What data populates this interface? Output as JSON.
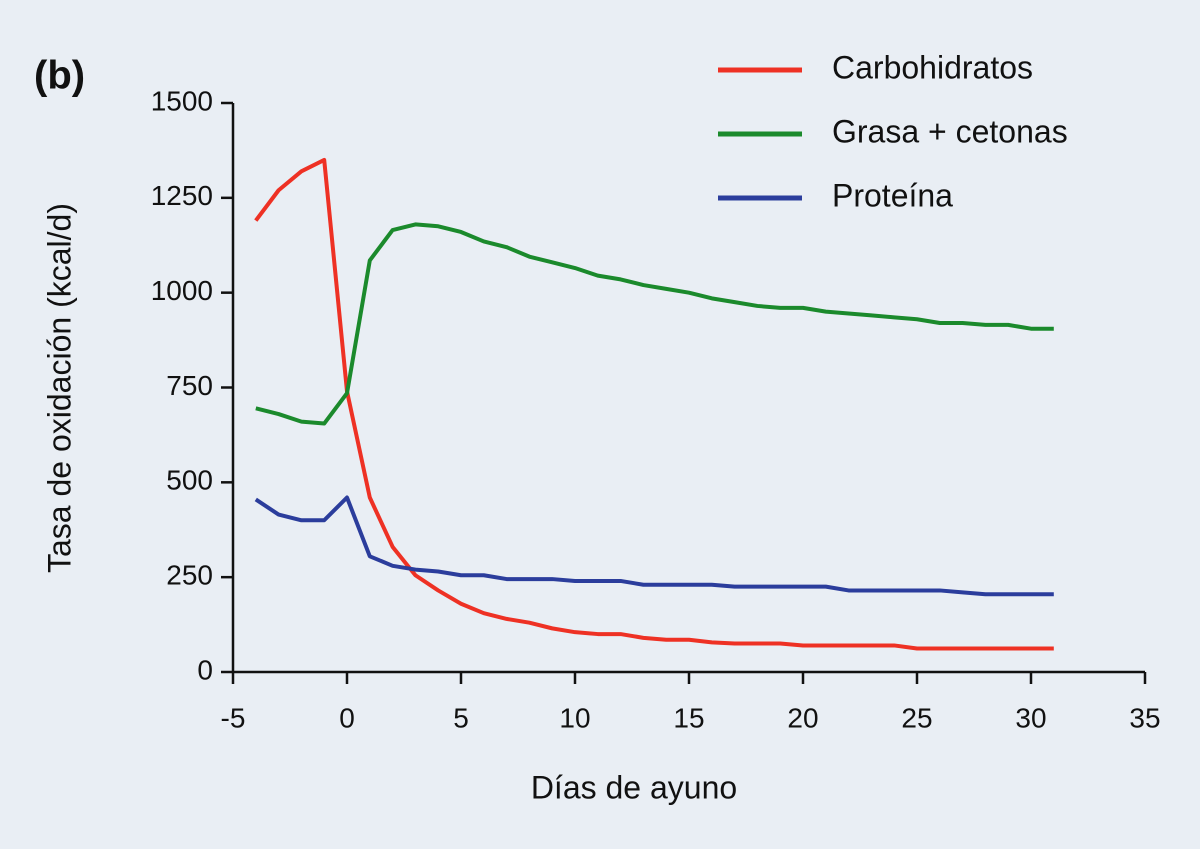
{
  "chart_data": {
    "type": "line",
    "label": "(b)",
    "x_label": "Días de ayuno",
    "y_label": "Tasa de oxidación  (kcal/d)",
    "x": [
      -4,
      -3,
      -2,
      -1,
      0,
      1,
      2,
      3,
      4,
      5,
      6,
      7,
      8,
      9,
      10,
      11,
      12,
      13,
      14,
      15,
      16,
      17,
      18,
      19,
      20,
      21,
      22,
      23,
      24,
      25,
      26,
      27,
      28,
      29,
      30,
      31
    ],
    "series": [
      {
        "name": "Carbohidratos",
        "color": "#ee3124",
        "values": [
          1190,
          1270,
          1320,
          1350,
          740,
          460,
          330,
          255,
          215,
          180,
          155,
          140,
          130,
          115,
          105,
          100,
          100,
          90,
          85,
          85,
          78,
          75,
          75,
          75,
          70,
          70,
          70,
          70,
          70,
          62,
          62,
          62,
          62,
          62,
          62,
          62
        ]
      },
      {
        "name": "Grasa + cetonas",
        "color": "#1b8a2c",
        "values": [
          695,
          680,
          660,
          655,
          735,
          1085,
          1165,
          1180,
          1175,
          1160,
          1135,
          1120,
          1095,
          1080,
          1065,
          1045,
          1035,
          1020,
          1010,
          1000,
          985,
          975,
          965,
          960,
          960,
          950,
          945,
          940,
          935,
          930,
          920,
          920,
          915,
          915,
          905,
          905
        ]
      },
      {
        "name": "Proteína",
        "color": "#2b3d9c",
        "values": [
          455,
          415,
          400,
          400,
          460,
          305,
          280,
          270,
          265,
          255,
          255,
          245,
          245,
          245,
          240,
          240,
          240,
          230,
          230,
          230,
          230,
          225,
          225,
          225,
          225,
          225,
          215,
          215,
          215,
          215,
          215,
          210,
          205,
          205,
          205,
          205
        ]
      }
    ],
    "xlim": [
      -5,
      35
    ],
    "xticks": [
      -5,
      0,
      5,
      10,
      15,
      20,
      25,
      30,
      35
    ],
    "ylim": [
      0,
      1500
    ],
    "yticks": [
      0,
      250,
      500,
      750,
      1000,
      1250,
      1500
    ]
  }
}
